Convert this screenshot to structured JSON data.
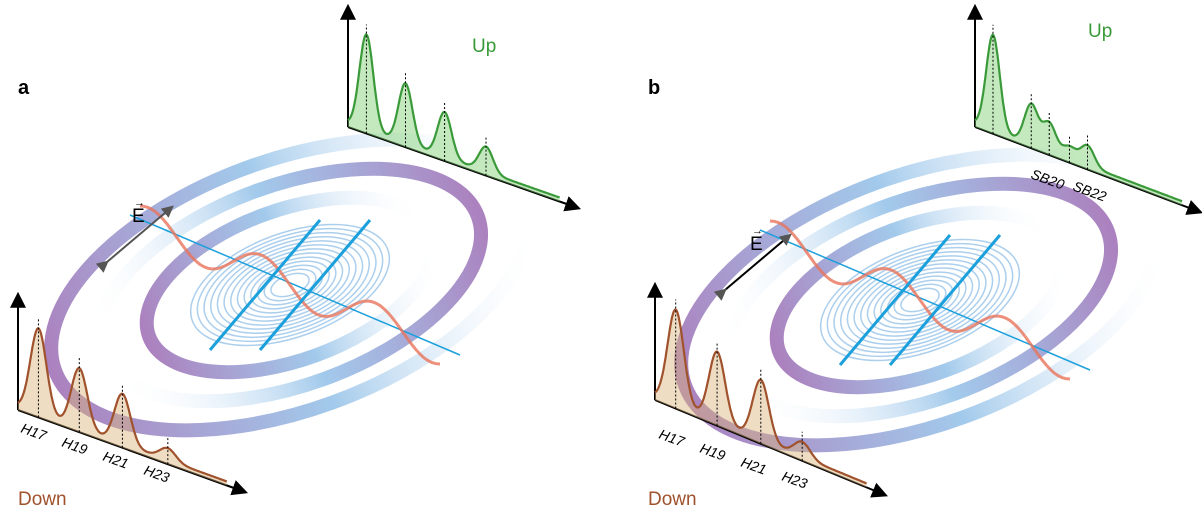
{
  "panels": [
    {
      "label": "a",
      "up": "Up",
      "down": "Down",
      "field": "E",
      "harmonics": [
        "H17",
        "H19",
        "H21",
        "H23"
      ]
    },
    {
      "label": "b",
      "up": "Up",
      "down": "Down",
      "field": "E",
      "harmonics": [
        "H17",
        "H19",
        "H21",
        "H23"
      ],
      "sidebands": [
        "SB20",
        "SB22"
      ]
    }
  ]
}
